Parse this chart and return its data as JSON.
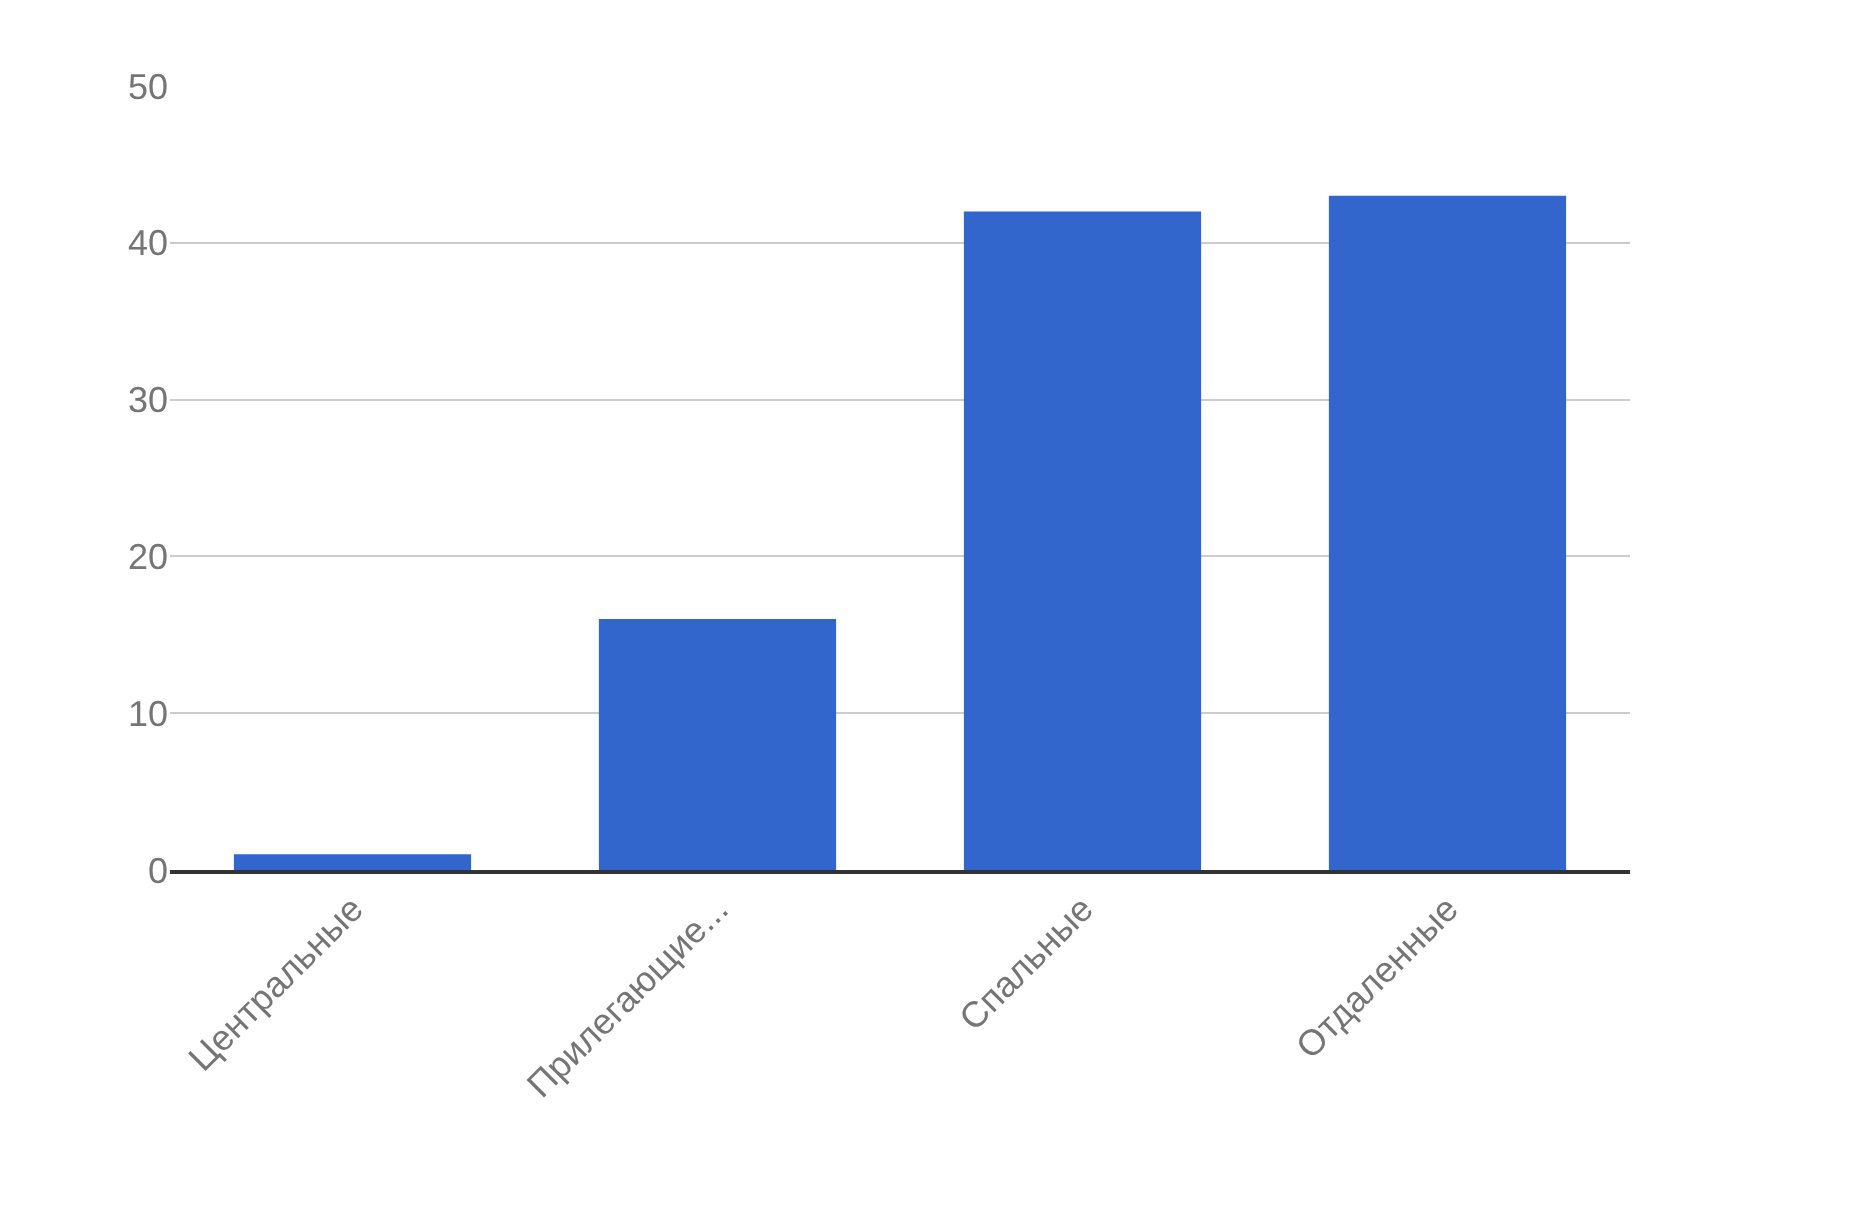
{
  "chart_data": {
    "type": "bar",
    "categories": [
      "Центральные",
      "Прилегающие...",
      "Спальные",
      "Отдаленные"
    ],
    "series": [
      {
        "color": "#3366cc",
        "values": [
          1,
          16,
          42,
          43
        ]
      }
    ],
    "ylim": [
      0,
      50
    ],
    "yticks": [
      0,
      10,
      20,
      30,
      40,
      50
    ],
    "grid": "y"
  }
}
